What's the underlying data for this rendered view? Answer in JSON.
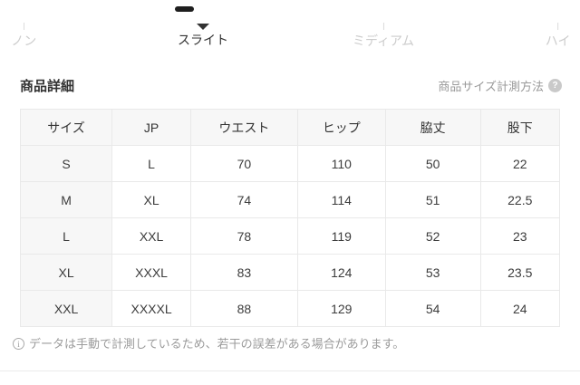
{
  "fit_scale": {
    "options": [
      {
        "label": "ノン",
        "selected": false
      },
      {
        "label": "スライト",
        "selected": true
      },
      {
        "label": "ミディアム",
        "selected": false
      },
      {
        "label": "ハイ",
        "selected": false
      }
    ]
  },
  "section": {
    "title": "商品詳細",
    "measure_link": "商品サイズ計測方法",
    "help_icon": "?"
  },
  "size_table": {
    "headers": [
      "サイズ",
      "JP",
      "ウエスト",
      "ヒップ",
      "脇丈",
      "股下"
    ],
    "rows": [
      [
        "S",
        "L",
        "70",
        "110",
        "50",
        "22"
      ],
      [
        "M",
        "XL",
        "74",
        "114",
        "51",
        "22.5"
      ],
      [
        "L",
        "XXL",
        "78",
        "119",
        "52",
        "23"
      ],
      [
        "XL",
        "XXXL",
        "83",
        "124",
        "53",
        "23.5"
      ],
      [
        "XXL",
        "XXXXL",
        "88",
        "129",
        "54",
        "24"
      ]
    ]
  },
  "footnote": {
    "icon": "i",
    "text": "データは手動で計測しているため、若干の誤差がある場合があります。"
  },
  "colors": {
    "selected_text": "#333333",
    "inactive_text": "#cccccc",
    "muted_text": "#999999",
    "table_border": "#e9e9e9",
    "table_header_bg": "#f7f7f7",
    "thumb_bar": "#1e1e1e"
  }
}
